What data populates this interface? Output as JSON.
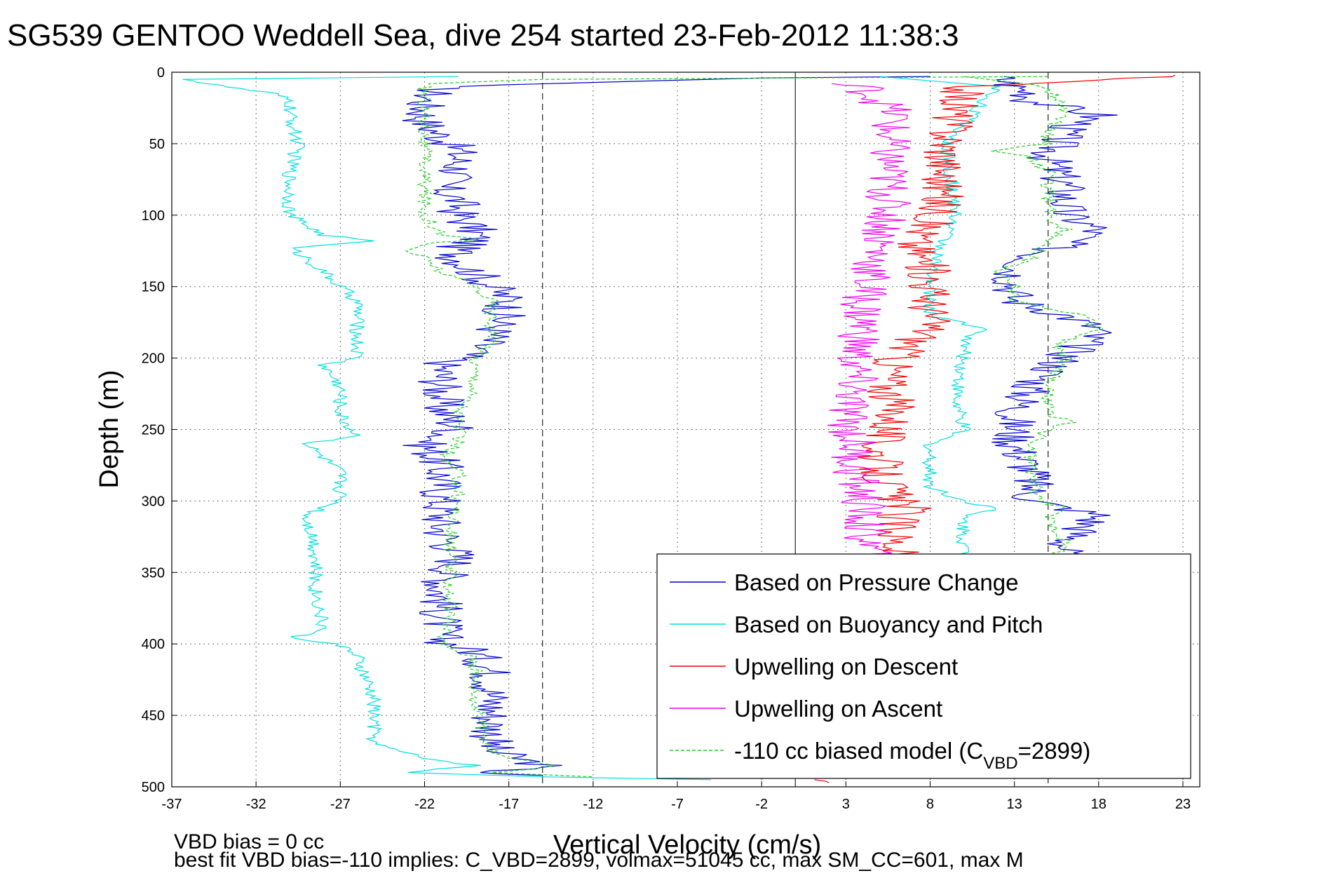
{
  "chart_data": {
    "type": "line",
    "title": "SG539 GENTOO Weddell Sea, dive 254 started 23-Feb-2012 11:38:3",
    "xlabel": "Vertical Velocity (cm/s)",
    "ylabel": "Depth (m)",
    "xlim": [
      -37,
      24
    ],
    "ylim": [
      0,
      500
    ],
    "y_reversed": true,
    "x_ticks": [
      -37,
      -32,
      -27,
      -22,
      -17,
      -12,
      -7,
      -2,
      3,
      8,
      13,
      18,
      23
    ],
    "y_ticks": [
      0,
      50,
      100,
      150,
      200,
      250,
      300,
      350,
      400,
      450,
      500
    ],
    "grid": true,
    "legend_position": "bottom-right",
    "reference_lines": [
      {
        "x": -15,
        "style": "dashed"
      },
      {
        "x": 0,
        "style": "solid"
      },
      {
        "x": 15,
        "style": "dashed"
      }
    ],
    "series": [
      {
        "name": "Based on Pressure Change",
        "color": "#0000cc",
        "style": "solid",
        "segments": [
          {
            "depth": [
              3,
              4,
              10,
              20,
              35,
              45,
              55,
              70,
              80,
              90,
              100,
              110,
              118,
              122,
              130,
              140,
              150,
              160,
              175,
              185,
              195,
              205,
              220,
              235,
              250,
              260,
              275,
              290,
              300,
              320,
              340,
              360,
              380,
              398,
              405,
              420,
              440,
              460,
              475,
              485,
              490,
              493
            ],
            "v": [
              8,
              -2,
              -21,
              -22,
              -22,
              -21,
              -20,
              -20,
              -21,
              -20,
              -20,
              -19,
              -19,
              -20,
              -20,
              -19,
              -18,
              -17,
              -17.5,
              -18,
              -19,
              -21,
              -21,
              -21,
              -20,
              -22,
              -21,
              -21,
              -21,
              -21,
              -20,
              -21,
              -21,
              -21,
              -19,
              -18,
              -18,
              -18,
              -18,
              -15,
              -18,
              -15
            ]
          },
          {
            "depth": [
              3,
              10,
              15,
              20,
              30,
              40,
              60,
              80,
              100,
              110,
              120,
              130,
              140,
              150,
              160,
              170,
              180,
              200,
              220,
              240,
              260,
              280,
              300,
              310,
              330,
              340
            ],
            "v": [
              12,
              13,
              14,
              14,
              18,
              16,
              15,
              16,
              16,
              18,
              16,
              14,
              13,
              13,
              13,
              16,
              18,
              16,
              14,
              13,
              13,
              14,
              14,
              18,
              16,
              16
            ]
          }
        ]
      },
      {
        "name": "Based on Buoyancy and Pitch",
        "color": "#00dddd",
        "style": "solid",
        "segments": [
          {
            "depth": [
              3,
              5,
              8,
              15,
              20,
              30,
              50,
              70,
              100,
              114,
              118,
              123,
              130,
              140,
              150,
              160,
              200,
              205,
              220,
              240,
              255,
              260,
              280,
              300,
              310,
              330,
              360,
              390,
              396,
              400,
              410,
              440,
              470,
              480,
              485,
              490,
              493,
              495
            ],
            "v": [
              -20,
              -36,
              -35,
              -31,
              -30,
              -30,
              -29.5,
              -30,
              -30,
              -28,
              -25,
              -30,
              -29,
              -28,
              -27,
              -26,
              -26,
              -28,
              -27,
              -27,
              -26,
              -29,
              -27,
              -27,
              -29,
              -28.5,
              -28.5,
              -28,
              -30,
              -27,
              -26,
              -25,
              -25,
              -22,
              -19,
              -23,
              -15,
              -5
            ]
          },
          {
            "depth": [
              3,
              10,
              50,
              100,
              140,
              170,
              175,
              180,
              190,
              200,
              230,
              250,
              260,
              290,
              300,
              305,
              310,
              330,
              345
            ],
            "v": [
              5,
              12,
              9,
              9.5,
              8,
              8,
              10,
              11,
              10,
              10,
              9.5,
              10,
              8,
              8,
              10,
              12,
              10,
              10,
              10
            ]
          }
        ]
      },
      {
        "name": "Upwelling on Descent",
        "color": "#ee0000",
        "style": "solid",
        "segments": [
          {
            "depth": [
              2,
              10,
              50,
              100,
              120,
              140,
              160,
              180,
              200,
              220,
              240,
              260,
              280,
              300,
              305,
              310,
              330,
              345
            ],
            "v": [
              23,
              10,
              9,
              8.5,
              7,
              8,
              8,
              8,
              6,
              5.5,
              6,
              5,
              5,
              6,
              7,
              6,
              6,
              6
            ]
          },
          {
            "depth": [
              495,
              497
            ],
            "v": [
              1,
              2
            ]
          }
        ]
      },
      {
        "name": "Upwelling on Ascent",
        "color": "#ee00ee",
        "style": "solid",
        "segments": [
          {
            "depth": [
              8,
              10,
              20,
              30,
              40,
              60,
              80,
              100,
              120,
              140,
              160,
              180,
              200,
              220,
              240,
              260,
              280,
              300,
              320,
              340,
              345
            ],
            "v": [
              2,
              4,
              5,
              6,
              5.5,
              5.5,
              5.5,
              5.5,
              5,
              4.5,
              4,
              4,
              3.5,
              3.5,
              3,
              3.5,
              3.5,
              4,
              4,
              4.5,
              4.5
            ]
          }
        ]
      },
      {
        "name": "-110 cc biased model (C_VBD=2899)",
        "color": "#22cc22",
        "style": "dashed",
        "segments": [
          {
            "depth": [
              3,
              5,
              8,
              15,
              30,
              40,
              50,
              60,
              70,
              80,
              100,
              113,
              117,
              120,
              125,
              130,
              140,
              150,
              160,
              170,
              180,
              190,
              200,
              210,
              220,
              240,
              260,
              270,
              280,
              300,
              320,
              340,
              360,
              380,
              400,
              410,
              420,
              440,
              460,
              475,
              480,
              485,
              490,
              493
            ],
            "v": [
              15,
              -15,
              -22,
              -22,
              -22,
              -22,
              -22,
              -22,
              -22,
              -22,
              -22,
              -21,
              -19,
              -22,
              -23,
              -22,
              -21,
              -19,
              -18,
              -18,
              -18,
              -18,
              -19,
              -19,
              -19,
              -20,
              -20,
              -21,
              -20,
              -20,
              -20.5,
              -20.5,
              -20.5,
              -20.5,
              -21,
              -19,
              -19,
              -19,
              -18.5,
              -18,
              -17,
              -14,
              -18,
              -12
            ]
          },
          {
            "depth": [
              3,
              10,
              30,
              40,
              50,
              55,
              60,
              70,
              80,
              100,
              110,
              120,
              130,
              140,
              150,
              160,
              170,
              180,
              190,
              200,
              220,
              240,
              245,
              250,
              260,
              280,
              300,
              305,
              310,
              330,
              340
            ],
            "v": [
              10,
              15,
              16,
              15,
              15,
              12,
              14,
              15,
              15,
              15,
              16,
              15,
              14,
              12,
              13,
              13,
              17,
              18,
              15.5,
              16,
              15,
              15,
              16.5,
              15,
              14,
              14,
              14.5,
              16,
              15,
              16,
              15.5
            ]
          }
        ]
      }
    ]
  },
  "legend": {
    "items": [
      {
        "label": "Based on Pressure Change",
        "color": "#0000cc",
        "style": "solid"
      },
      {
        "label": "Based on Buoyancy and Pitch",
        "color": "#00dddd",
        "style": "solid"
      },
      {
        "label": "Upwelling on Descent",
        "color": "#ee0000",
        "style": "solid"
      },
      {
        "label": "Upwelling on Ascent",
        "color": "#ee00ee",
        "style": "solid"
      },
      {
        "label_prefix": "-110 cc biased model (C",
        "label_sub": "VBD",
        "label_suffix": "=2899)",
        "color": "#22cc22",
        "style": "dashed"
      }
    ]
  },
  "footer": {
    "line1": "VBD bias = 0 cc",
    "line2": "best fit VBD bias=-110 implies: C_VBD=2899, volmax=51045 cc, max SM_CC=601, max M"
  }
}
